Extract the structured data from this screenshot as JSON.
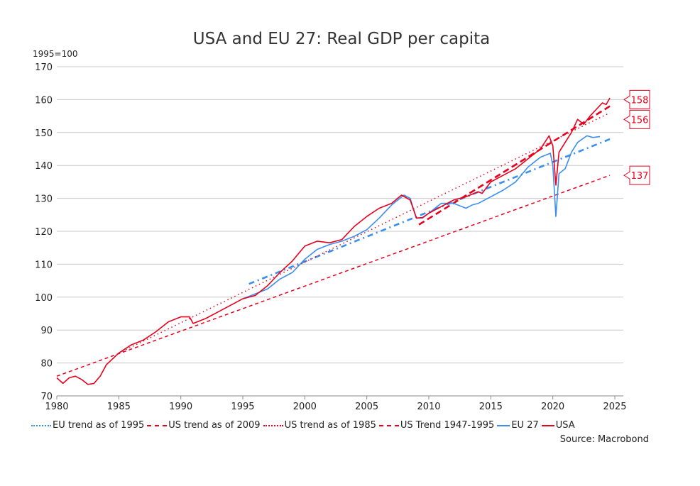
{
  "chart_data": {
    "type": "line",
    "title": "USA and EU 27: Real GDP per capita",
    "ylabel": "1995=100",
    "xlim": [
      1980,
      2025
    ],
    "ylim": [
      70,
      170
    ],
    "xticks": [
      1980,
      1985,
      1990,
      1995,
      2000,
      2005,
      2010,
      2015,
      2020,
      2025
    ],
    "yticks": [
      70,
      80,
      90,
      100,
      110,
      120,
      130,
      140,
      150,
      160,
      170
    ],
    "grid": "horizontal",
    "legend_position": "bottom",
    "source": "Source: Macrobond",
    "series": [
      {
        "name": "EU trend as of 1995",
        "color": "#3a8ef0",
        "style": "dashdot",
        "x": [
          1995.5,
          2024.6
        ],
        "y": [
          104,
          148
        ]
      },
      {
        "name": "US trend as of 2009",
        "color": "#e8001c",
        "style": "dash",
        "x": [
          2009.2,
          2024.6
        ],
        "y": [
          122,
          158
        ]
      },
      {
        "name": "US trend as of 1985",
        "color": "#e8001c",
        "style": "dot",
        "x": [
          1985,
          2024.6
        ],
        "y": [
          83,
          156
        ]
      },
      {
        "name": "US Trend 1947-1995",
        "color": "#e8001c",
        "style": "shortdash",
        "x": [
          1980,
          2024.6
        ],
        "y": [
          76,
          137
        ]
      },
      {
        "name": "EU 27",
        "color": "#3a8ef0",
        "style": "solid",
        "x": [
          1995,
          1996,
          1997,
          1998,
          1999,
          2000,
          2001,
          2002,
          2003,
          2004,
          2005,
          2006,
          2007,
          2008,
          2008.5,
          2009,
          2009.5,
          2010,
          2011,
          2012,
          2013,
          2013.5,
          2014,
          2015,
          2016,
          2017,
          2018,
          2019,
          2019.8,
          2020,
          2020.25,
          2020.5,
          2021,
          2021.5,
          2022,
          2022.75,
          2023.25,
          2023.8
        ],
        "y": [
          99.5,
          101,
          102.5,
          105.5,
          107.5,
          111.5,
          114.5,
          116,
          117,
          118.5,
          120.5,
          124,
          128,
          131,
          130,
          124,
          124,
          125.5,
          128.5,
          128.5,
          127,
          128,
          128.5,
          130.5,
          132.5,
          135,
          139.5,
          142.5,
          143.7,
          140,
          124.5,
          137.5,
          139,
          144,
          147,
          149,
          148.5,
          148.8
        ]
      },
      {
        "name": "USA",
        "color": "#e8001c",
        "style": "solid",
        "x": [
          1980,
          1980.5,
          1981,
          1981.5,
          1982,
          1982.5,
          1983,
          1983.5,
          1984,
          1985,
          1986,
          1987,
          1988,
          1989,
          1990,
          1990.7,
          1991,
          1992,
          1993,
          1994,
          1995,
          1996,
          1997,
          1998,
          1999,
          2000,
          2001,
          2002,
          2003,
          2004,
          2005,
          2006,
          2007,
          2007.8,
          2008.5,
          2009,
          2009.5,
          2010,
          2011,
          2012,
          2013,
          2014,
          2014.3,
          2015,
          2016,
          2017,
          2018,
          2019,
          2019.7,
          2020,
          2020.25,
          2020.5,
          2021,
          2021.5,
          2022,
          2022.5,
          2023,
          2024,
          2024.3,
          2024.6
        ],
        "y": [
          75.5,
          73.8,
          75.5,
          76,
          75,
          73.5,
          73.8,
          76,
          79.5,
          83,
          85.5,
          87,
          89.5,
          92.5,
          94,
          94,
          92,
          93.5,
          95.5,
          97.5,
          99.5,
          100.5,
          103.5,
          107.5,
          111,
          115.5,
          117,
          116.5,
          117.5,
          121.5,
          124.5,
          127,
          128.5,
          131,
          129.5,
          124,
          124.2,
          125.5,
          127.5,
          129.5,
          130.5,
          132,
          131.5,
          135,
          137,
          139,
          142,
          145,
          149,
          146,
          134,
          144,
          147,
          150,
          154,
          152.5,
          155,
          159,
          158.5,
          160.5
        ]
      }
    ],
    "end_labels": [
      {
        "text": "158",
        "value": 158
      },
      {
        "text": "156",
        "value": 156
      },
      {
        "text": "137",
        "value": 137
      }
    ]
  }
}
